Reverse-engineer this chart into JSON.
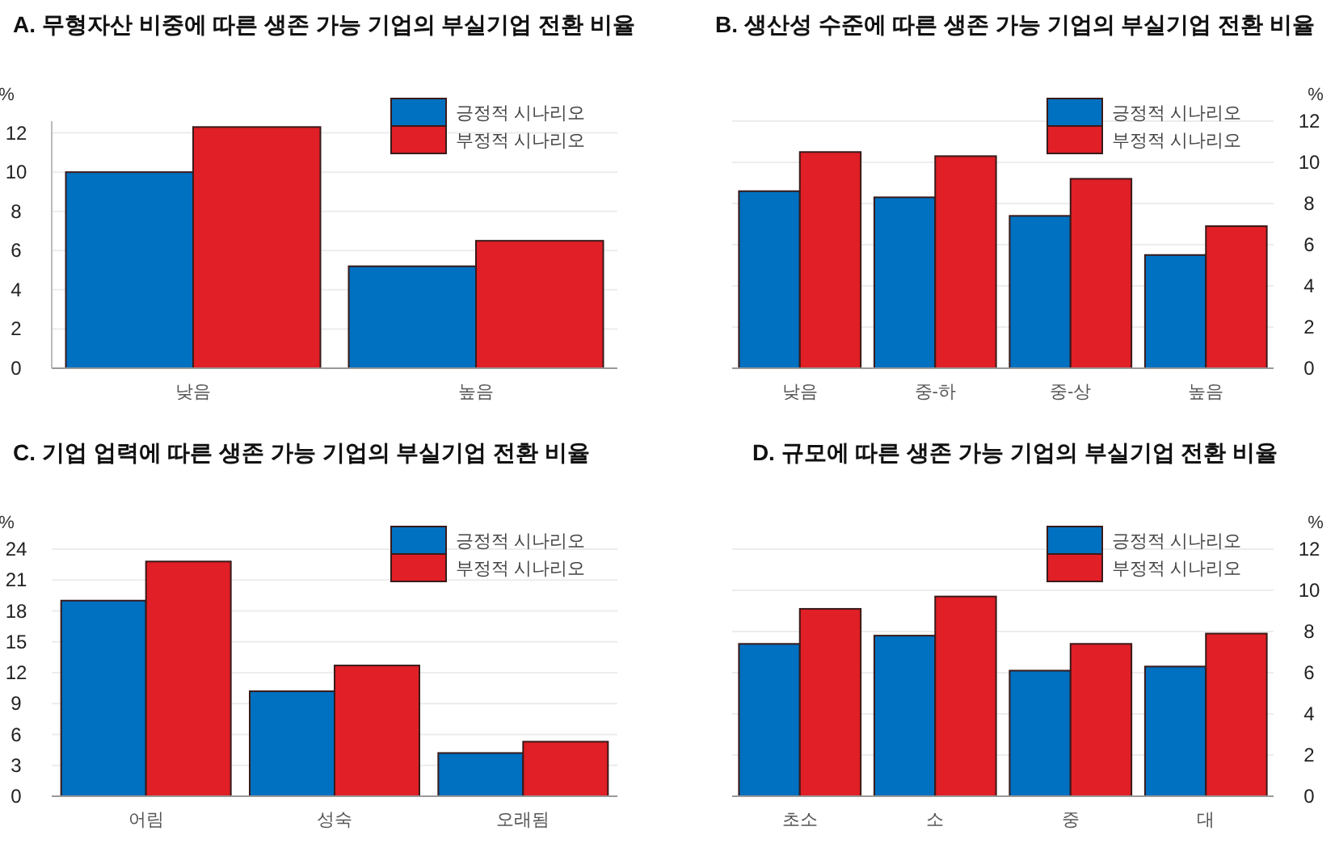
{
  "chart_data": [
    {
      "type": "bar",
      "title": "A. 무형자산 비중에 따른 생존 가능 기업의 부실기업 전환 비율",
      "ylabel": "%",
      "categories": [
        "낮음",
        "높음"
      ],
      "series": [
        {
          "name": "긍정적 시나리오",
          "color": "#0070c0",
          "values": [
            10.0,
            5.2
          ]
        },
        {
          "name": "부정적 시나리오",
          "color": "#e01f26",
          "values": [
            12.3,
            6.5
          ]
        }
      ],
      "ylim": [
        0,
        12.6
      ],
      "yticks": [
        0,
        2,
        4,
        6,
        8,
        10,
        12
      ],
      "grid": "y",
      "legend": "top right"
    },
    {
      "type": "bar",
      "title": "B. 생산성 수준에 따른 생존 가능 기업의 부실기업 전환 비율",
      "ylabel": "%",
      "categories": [
        "낮음",
        "중-하",
        "중-상",
        "높음"
      ],
      "series": [
        {
          "name": "긍정적 시나리오",
          "color": "#0070c0",
          "values": [
            8.6,
            8.3,
            7.4,
            5.5
          ]
        },
        {
          "name": "부정적 시나리오",
          "color": "#e01f26",
          "values": [
            10.5,
            10.3,
            9.2,
            6.9
          ]
        }
      ],
      "ylim": [
        0,
        12
      ],
      "yticks": [
        0,
        2,
        4,
        6,
        8,
        10,
        12
      ],
      "grid": "y",
      "legend": "top right"
    },
    {
      "type": "bar",
      "title": "C. 기업 업력에 따른 생존 가능 기업의 부실기업 전환 비율",
      "ylabel": "%",
      "categories": [
        "어림",
        "성숙",
        "오래됨"
      ],
      "series": [
        {
          "name": "긍정적 시나리오",
          "color": "#0070c0",
          "values": [
            19.0,
            10.2,
            4.2
          ]
        },
        {
          "name": "부정적 시나리오",
          "color": "#e01f26",
          "values": [
            22.8,
            12.7,
            5.3
          ]
        }
      ],
      "ylim": [
        0,
        24
      ],
      "yticks": [
        0,
        3,
        6,
        9,
        12,
        15,
        18,
        21,
        24
      ],
      "grid": "y",
      "legend": "top right"
    },
    {
      "type": "bar",
      "title": "D. 규모에 따른 생존 가능 기업의 부실기업 전환 비율",
      "ylabel": "%",
      "categories": [
        "초소",
        "소",
        "중",
        "대"
      ],
      "series": [
        {
          "name": "긍정적 시나리오",
          "color": "#0070c0",
          "values": [
            7.4,
            7.8,
            6.1,
            6.3
          ]
        },
        {
          "name": "부정적 시나리오",
          "color": "#e01f26",
          "values": [
            9.1,
            9.7,
            7.4,
            7.9
          ]
        }
      ],
      "ylim": [
        0,
        12
      ],
      "yticks": [
        0,
        2,
        4,
        6,
        8,
        10,
        12
      ],
      "grid": "y",
      "legend": "top right"
    }
  ]
}
